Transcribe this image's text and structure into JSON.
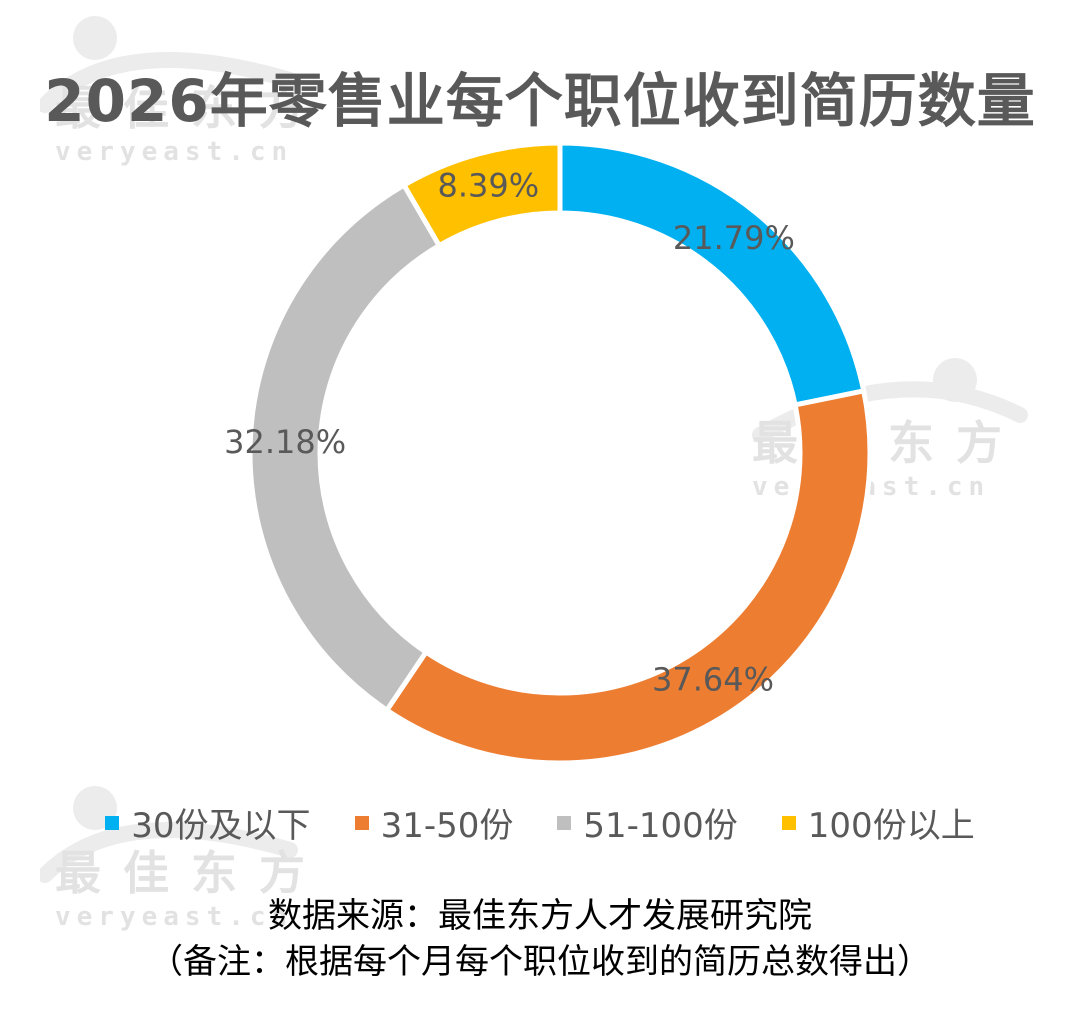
{
  "chart_data": {
    "type": "pie",
    "variant": "donut",
    "title": "2026年零售业每个职位收到简历数量",
    "categories": [
      "30份及以下",
      "31-50份",
      "51-100份",
      "100份以上"
    ],
    "values": [
      21.79,
      37.64,
      32.18,
      8.39
    ],
    "data_labels": [
      "21.79%",
      "37.64%",
      "32.18%",
      "8.39%"
    ],
    "colors": [
      "#00B0F0",
      "#ED7D31",
      "#BFBFBF",
      "#FFC000"
    ],
    "legend_position": "bottom",
    "start_angle_deg": 0,
    "direction": "clockwise"
  },
  "footnotes": {
    "source": "数据来源：最佳东方人才发展研究院",
    "note": "（备注：根据每个月每个职位收到的简历总数得出）"
  },
  "watermark": {
    "brand_cn": "最佳东方",
    "brand_en": "veryeast.cn"
  }
}
